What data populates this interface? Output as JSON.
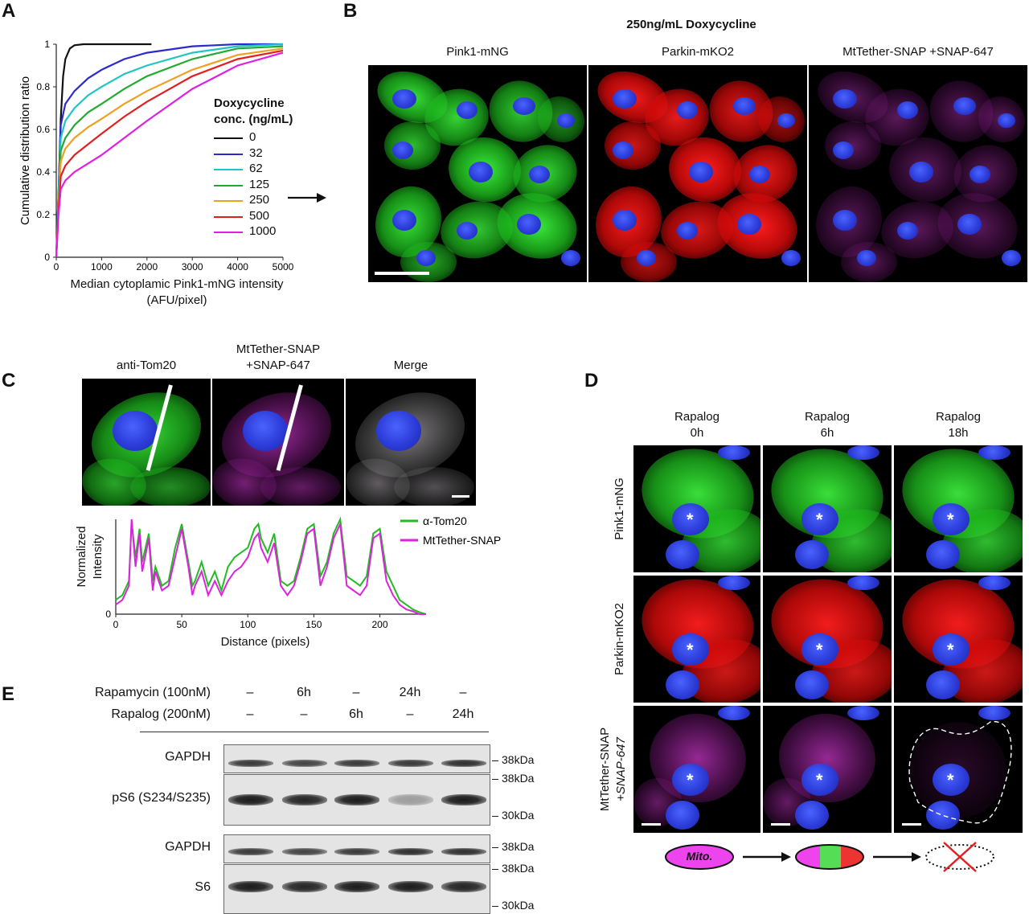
{
  "panels": {
    "A": "A",
    "B": "B",
    "C": "C",
    "D": "D",
    "E": "E"
  },
  "panel_a": {
    "legend_title_1": "Doxycycline",
    "legend_title_2": "conc. (ng/mL)",
    "xlabel_1": "Median cytoplamic Pink1-mNG intensity",
    "xlabel_2": "(AFU/pixel)",
    "ylabel": "Cumulative distribution ratio"
  },
  "panel_b": {
    "title": "250ng/mL Doxycycline",
    "channels": [
      "Pink1-mNG",
      "Parkin-mKO2",
      "MtTether-SNAP +SNAP-647"
    ]
  },
  "panel_c": {
    "channels": [
      {
        "line1": "",
        "line2": "anti-Tom20"
      },
      {
        "line1": "MtTether-SNAP",
        "line2": "+SNAP-647"
      },
      {
        "line1": "",
        "line2": "Merge"
      }
    ],
    "ylabel_1": "Normalized",
    "ylabel_2": "Intensity",
    "xlabel": "Distance (pixels)"
  },
  "panel_d": {
    "columns": [
      {
        "line1": "Rapalog",
        "line2": "0h"
      },
      {
        "line1": "Rapalog",
        "line2": "6h"
      },
      {
        "line1": "Rapalog",
        "line2": "18h"
      }
    ],
    "rows": [
      {
        "line1": "Pink1-mNG",
        "line2": ""
      },
      {
        "line1": "Parkin-mKO2",
        "line2": ""
      },
      {
        "line1": "MtTether-SNAP",
        "line2": "+SNAP-647"
      }
    ],
    "asterisk": "*",
    "mito_label": "Mito."
  },
  "panel_e": {
    "treatments": [
      {
        "label": "Rapamycin (100nM)",
        "lanes": [
          "–",
          "6h",
          "–",
          "24h",
          "–"
        ]
      },
      {
        "label": "Rapalog (200nM)",
        "lanes": [
          "–",
          "–",
          "6h",
          "–",
          "24h"
        ]
      }
    ],
    "blots": [
      {
        "label": "GAPDH",
        "markers": [
          "38kDa"
        ],
        "intensities": [
          0.85,
          0.8,
          0.85,
          0.85,
          0.9
        ]
      },
      {
        "label": "pS6 (S234/S235)",
        "markers": [
          "38kDa",
          "30kDa"
        ],
        "intensities": [
          1.0,
          0.95,
          1.0,
          0.35,
          1.0
        ]
      },
      {
        "label": "GAPDH",
        "markers": [
          "38kDa"
        ],
        "intensities": [
          0.85,
          0.8,
          0.85,
          0.9,
          0.9
        ]
      },
      {
        "label": "S6",
        "markers": [
          "38kDa",
          "30kDa"
        ],
        "intensities": [
          1.0,
          0.95,
          1.0,
          1.0,
          0.95
        ]
      }
    ]
  },
  "chart_data": [
    {
      "type": "line",
      "panel": "A",
      "xlabel": "Median cytoplamic Pink1-mNG intensity (AFU/pixel)",
      "ylabel": "Cumulative distribution ratio",
      "xlim": [
        0,
        5000
      ],
      "ylim": [
        0,
        1
      ],
      "xticks": [
        0,
        1000,
        2000,
        3000,
        4000,
        5000
      ],
      "yticks": [
        0,
        0.2,
        0.4,
        0.6,
        0.8,
        1
      ],
      "ytick_labels": [
        "0",
        "0.2",
        "0.4",
        "0.6",
        "0.8",
        "1"
      ],
      "legend_title": "Doxycycline conc. (ng/mL)",
      "legend_position": "right",
      "series": [
        {
          "name": "0",
          "color": "#111111",
          "x": [
            0,
            50,
            100,
            150,
            200,
            300,
            400,
            600,
            1000,
            2100
          ],
          "y": [
            0,
            0.3,
            0.65,
            0.85,
            0.93,
            0.98,
            0.995,
            1.0,
            1.0,
            1.0
          ]
        },
        {
          "name": "32",
          "color": "#2b2bcc",
          "x": [
            0,
            50,
            100,
            200,
            400,
            700,
            1000,
            1500,
            2000,
            3000,
            4000,
            5000
          ],
          "y": [
            0,
            0.3,
            0.62,
            0.72,
            0.78,
            0.84,
            0.88,
            0.93,
            0.96,
            0.99,
            1.0,
            1.0
          ]
        },
        {
          "name": "62",
          "color": "#1fc4c4",
          "x": [
            0,
            50,
            100,
            200,
            400,
            700,
            1000,
            1500,
            2000,
            3000,
            4000,
            5000
          ],
          "y": [
            0,
            0.28,
            0.56,
            0.64,
            0.7,
            0.76,
            0.8,
            0.86,
            0.9,
            0.96,
            0.99,
            1.0
          ]
        },
        {
          "name": "125",
          "color": "#22aa33",
          "x": [
            0,
            50,
            100,
            200,
            400,
            700,
            1000,
            1500,
            2000,
            3000,
            4000,
            5000
          ],
          "y": [
            0,
            0.26,
            0.5,
            0.56,
            0.62,
            0.68,
            0.72,
            0.79,
            0.85,
            0.93,
            0.98,
            0.99
          ]
        },
        {
          "name": "250",
          "color": "#f0a020",
          "x": [
            0,
            50,
            100,
            200,
            400,
            700,
            1000,
            1500,
            2000,
            3000,
            4000,
            5000
          ],
          "y": [
            0,
            0.24,
            0.45,
            0.51,
            0.56,
            0.61,
            0.65,
            0.72,
            0.78,
            0.88,
            0.95,
            0.98
          ]
        },
        {
          "name": "500",
          "color": "#e02020",
          "x": [
            0,
            50,
            100,
            200,
            400,
            700,
            1000,
            1500,
            2000,
            3000,
            4000,
            5000
          ],
          "y": [
            0,
            0.22,
            0.38,
            0.43,
            0.48,
            0.53,
            0.58,
            0.66,
            0.73,
            0.85,
            0.93,
            0.97
          ]
        },
        {
          "name": "1000",
          "color": "#e020e0",
          "x": [
            0,
            50,
            100,
            200,
            400,
            700,
            1000,
            1500,
            2000,
            3000,
            4000,
            5000
          ],
          "y": [
            0,
            0.2,
            0.32,
            0.36,
            0.4,
            0.44,
            0.48,
            0.56,
            0.64,
            0.79,
            0.9,
            0.96
          ]
        }
      ]
    },
    {
      "type": "line",
      "panel": "C",
      "xlabel": "Distance (pixels)",
      "ylabel": "Normalized Intensity",
      "xlim": [
        0,
        235
      ],
      "ylim": [
        0,
        1
      ],
      "xticks": [
        0,
        50,
        100,
        150,
        200
      ],
      "yticks": [
        0
      ],
      "legend_position": "top-right",
      "series": [
        {
          "name": "α-Tom20",
          "color": "#22bb22",
          "x": [
            0,
            5,
            10,
            12,
            15,
            18,
            20,
            25,
            28,
            30,
            35,
            40,
            45,
            50,
            55,
            58,
            60,
            65,
            70,
            75,
            80,
            85,
            90,
            95,
            100,
            105,
            108,
            110,
            115,
            120,
            125,
            130,
            135,
            140,
            145,
            150,
            155,
            160,
            165,
            170,
            175,
            180,
            185,
            190,
            195,
            200,
            205,
            210,
            215,
            220,
            225,
            230,
            235
          ],
          "y": [
            0.15,
            0.2,
            0.35,
            0.97,
            0.6,
            0.9,
            0.55,
            0.85,
            0.35,
            0.5,
            0.3,
            0.35,
            0.7,
            0.95,
            0.55,
            0.3,
            0.35,
            0.55,
            0.3,
            0.45,
            0.25,
            0.5,
            0.6,
            0.65,
            0.7,
            0.9,
            0.95,
            0.8,
            0.65,
            0.85,
            0.35,
            0.3,
            0.35,
            0.6,
            0.9,
            0.95,
            0.4,
            0.55,
            0.85,
            1.0,
            0.4,
            0.35,
            0.3,
            0.4,
            0.85,
            0.9,
            0.45,
            0.3,
            0.15,
            0.1,
            0.05,
            0.02,
            0.0
          ]
        },
        {
          "name": "MtTether-SNAP",
          "color": "#dd22dd",
          "x": [
            0,
            5,
            10,
            12,
            15,
            18,
            20,
            25,
            28,
            30,
            35,
            40,
            45,
            50,
            55,
            58,
            60,
            65,
            70,
            75,
            80,
            85,
            90,
            95,
            100,
            105,
            108,
            110,
            115,
            120,
            125,
            130,
            135,
            140,
            145,
            150,
            155,
            160,
            165,
            170,
            175,
            180,
            185,
            190,
            195,
            200,
            205,
            210,
            215,
            220,
            225,
            230,
            235
          ],
          "y": [
            0.1,
            0.15,
            0.3,
            1.0,
            0.5,
            0.85,
            0.45,
            0.8,
            0.25,
            0.45,
            0.25,
            0.3,
            0.6,
            0.9,
            0.5,
            0.2,
            0.3,
            0.45,
            0.2,
            0.35,
            0.2,
            0.35,
            0.45,
            0.5,
            0.6,
            0.8,
            0.85,
            0.7,
            0.55,
            0.75,
            0.3,
            0.2,
            0.3,
            0.55,
            0.85,
            0.9,
            0.3,
            0.5,
            0.8,
            0.95,
            0.3,
            0.25,
            0.2,
            0.3,
            0.8,
            0.85,
            0.35,
            0.2,
            0.1,
            0.05,
            0.03,
            0.0,
            0.0
          ]
        }
      ]
    }
  ]
}
